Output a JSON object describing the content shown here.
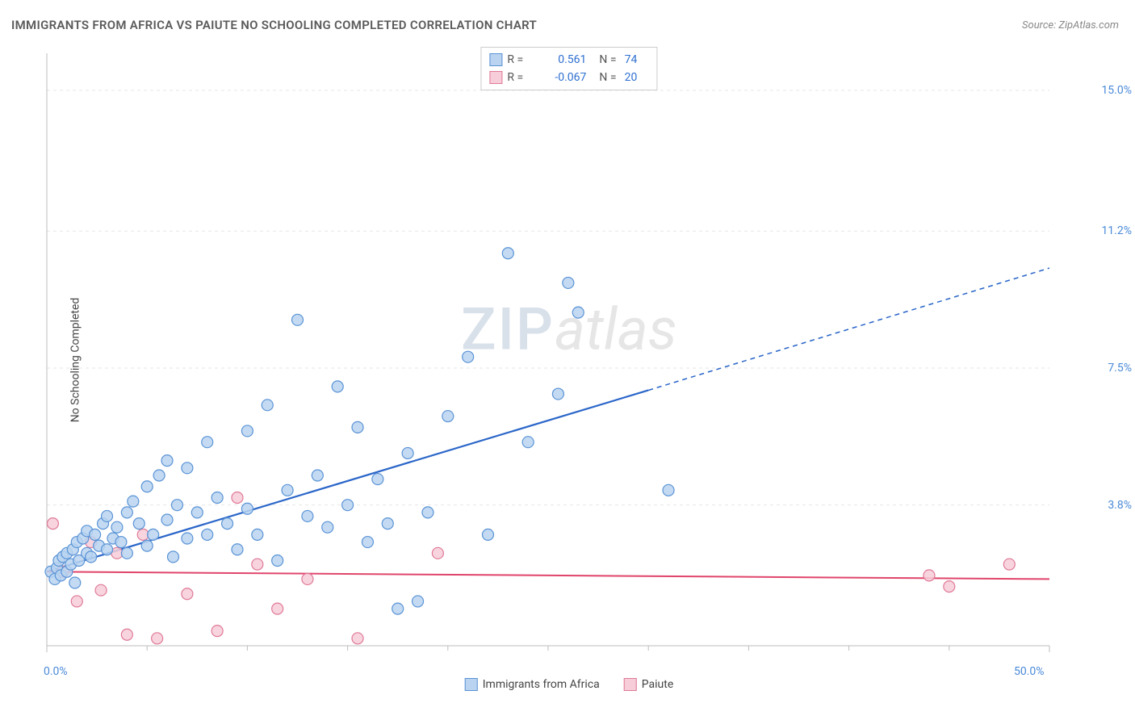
{
  "title": "IMMIGRANTS FROM AFRICA VS PAIUTE NO SCHOOLING COMPLETED CORRELATION CHART",
  "source": "Source: ZipAtlas.com",
  "ylabel": "No Schooling Completed",
  "watermark": {
    "zip": "ZIP",
    "atlas": "atlas"
  },
  "chart": {
    "type": "scatter",
    "xlim": [
      0,
      50
    ],
    "ylim": [
      0,
      16
    ],
    "yticks": [
      {
        "v": 3.8,
        "label": "3.8%",
        "color": "#4a8ad8"
      },
      {
        "v": 7.5,
        "label": "7.5%",
        "color": "#4a8ad8"
      },
      {
        "v": 11.2,
        "label": "11.2%",
        "color": "#4a8ad8"
      },
      {
        "v": 15.0,
        "label": "15.0%",
        "color": "#4a8ad8"
      }
    ],
    "xticks_major": [
      0,
      50
    ],
    "xtick_labels": [
      {
        "v": 0,
        "label": "0.0%",
        "color": "#4a8ad8"
      },
      {
        "v": 50,
        "label": "50.0%",
        "color": "#4a8ad8"
      }
    ],
    "xticks_minor": [
      5,
      10,
      15,
      20,
      25,
      30,
      35,
      40,
      45
    ],
    "grid_color": "#e6e6e6",
    "axis_color": "#bdbdbd",
    "background_color": "#ffffff",
    "marker_radius": 7,
    "marker_stroke_width": 1.2,
    "series": [
      {
        "name": "Immigrants from Africa",
        "fill": "#b9d3f0",
        "stroke": "#5a93d6",
        "r_value": "0.561",
        "n_value": "74",
        "r_color": "#2f6fd0",
        "trend": {
          "solid_from": [
            0,
            2.0
          ],
          "solid_to": [
            30,
            6.9
          ],
          "dash_to": [
            50,
            10.2
          ],
          "color": "#2b66c9",
          "width": 2.2
        },
        "points": [
          [
            0.2,
            2.0
          ],
          [
            0.4,
            1.8
          ],
          [
            0.5,
            2.1
          ],
          [
            0.6,
            2.3
          ],
          [
            0.7,
            1.9
          ],
          [
            0.8,
            2.4
          ],
          [
            1.0,
            2.0
          ],
          [
            1.0,
            2.5
          ],
          [
            1.2,
            2.2
          ],
          [
            1.3,
            2.6
          ],
          [
            1.4,
            1.7
          ],
          [
            1.5,
            2.8
          ],
          [
            1.6,
            2.3
          ],
          [
            1.8,
            2.9
          ],
          [
            2.0,
            2.5
          ],
          [
            2.0,
            3.1
          ],
          [
            2.2,
            2.4
          ],
          [
            2.4,
            3.0
          ],
          [
            2.6,
            2.7
          ],
          [
            2.8,
            3.3
          ],
          [
            3.0,
            2.6
          ],
          [
            3.0,
            3.5
          ],
          [
            3.3,
            2.9
          ],
          [
            3.5,
            3.2
          ],
          [
            3.7,
            2.8
          ],
          [
            4.0,
            3.6
          ],
          [
            4.0,
            2.5
          ],
          [
            4.3,
            3.9
          ],
          [
            4.6,
            3.3
          ],
          [
            5.0,
            2.7
          ],
          [
            5.0,
            4.3
          ],
          [
            5.3,
            3.0
          ],
          [
            5.6,
            4.6
          ],
          [
            6.0,
            3.4
          ],
          [
            6.0,
            5.0
          ],
          [
            6.3,
            2.4
          ],
          [
            6.5,
            3.8
          ],
          [
            7.0,
            4.8
          ],
          [
            7.0,
            2.9
          ],
          [
            7.5,
            3.6
          ],
          [
            8.0,
            5.5
          ],
          [
            8.0,
            3.0
          ],
          [
            8.5,
            4.0
          ],
          [
            9.0,
            3.3
          ],
          [
            9.5,
            2.6
          ],
          [
            10.0,
            5.8
          ],
          [
            10.0,
            3.7
          ],
          [
            10.5,
            3.0
          ],
          [
            11.0,
            6.5
          ],
          [
            11.5,
            2.3
          ],
          [
            12.0,
            4.2
          ],
          [
            12.5,
            8.8
          ],
          [
            13.0,
            3.5
          ],
          [
            13.5,
            4.6
          ],
          [
            14.0,
            3.2
          ],
          [
            14.5,
            7.0
          ],
          [
            15.0,
            3.8
          ],
          [
            15.5,
            5.9
          ],
          [
            16.0,
            2.8
          ],
          [
            16.5,
            4.5
          ],
          [
            17.0,
            3.3
          ],
          [
            17.5,
            1.0
          ],
          [
            18.0,
            5.2
          ],
          [
            18.5,
            1.2
          ],
          [
            19.0,
            3.6
          ],
          [
            20.0,
            6.2
          ],
          [
            21.0,
            7.8
          ],
          [
            22.0,
            3.0
          ],
          [
            23.0,
            10.6
          ],
          [
            24.0,
            5.5
          ],
          [
            25.5,
            6.8
          ],
          [
            26.0,
            9.8
          ],
          [
            26.5,
            9.0
          ],
          [
            31.0,
            4.2
          ]
        ]
      },
      {
        "name": "Paiute",
        "fill": "#f6cdd8",
        "stroke": "#e07997",
        "r_value": "-0.067",
        "n_value": "20",
        "r_color": "#2f6fd0",
        "trend": {
          "solid_from": [
            0,
            2.0
          ],
          "solid_to": [
            50,
            1.8
          ],
          "dash_to": null,
          "color": "#e0456b",
          "width": 2.0
        },
        "points": [
          [
            0.3,
            3.3
          ],
          [
            0.8,
            2.0
          ],
          [
            1.5,
            1.2
          ],
          [
            2.2,
            2.8
          ],
          [
            2.7,
            1.5
          ],
          [
            3.5,
            2.5
          ],
          [
            4.0,
            0.3
          ],
          [
            4.8,
            3.0
          ],
          [
            5.5,
            0.2
          ],
          [
            7.0,
            1.4
          ],
          [
            8.5,
            0.4
          ],
          [
            9.5,
            4.0
          ],
          [
            10.5,
            2.2
          ],
          [
            11.5,
            1.0
          ],
          [
            13.0,
            1.8
          ],
          [
            15.5,
            0.2
          ],
          [
            19.5,
            2.5
          ],
          [
            44.0,
            1.9
          ],
          [
            45.0,
            1.6
          ],
          [
            48.0,
            2.2
          ]
        ]
      }
    ],
    "legend_top": {
      "r_label": "R =",
      "n_label": "N ="
    },
    "legend_bottom_labels": [
      "Immigrants from Africa",
      "Paiute"
    ]
  }
}
